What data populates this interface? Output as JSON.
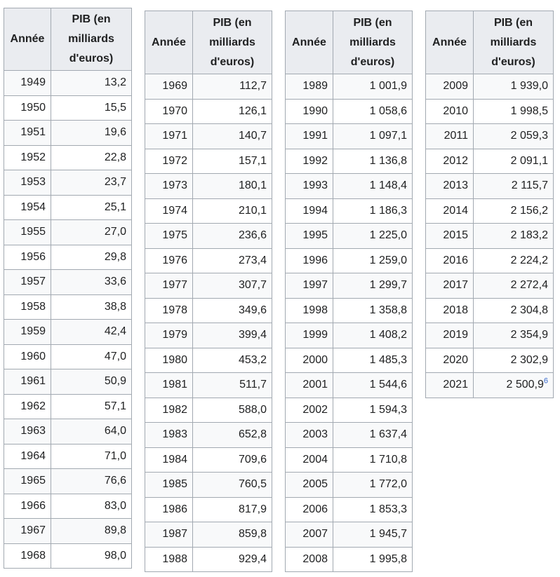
{
  "headers": {
    "year": "Année",
    "gdp": "PIB (en milliards d'euros)"
  },
  "tables": [
    {
      "rows": [
        {
          "year": "1949",
          "gdp": "13,2"
        },
        {
          "year": "1950",
          "gdp": "15,5"
        },
        {
          "year": "1951",
          "gdp": "19,6"
        },
        {
          "year": "1952",
          "gdp": "22,8"
        },
        {
          "year": "1953",
          "gdp": "23,7"
        },
        {
          "year": "1954",
          "gdp": "25,1"
        },
        {
          "year": "1955",
          "gdp": "27,0"
        },
        {
          "year": "1956",
          "gdp": "29,8"
        },
        {
          "year": "1957",
          "gdp": "33,6"
        },
        {
          "year": "1958",
          "gdp": "38,8"
        },
        {
          "year": "1959",
          "gdp": "42,4"
        },
        {
          "year": "1960",
          "gdp": "47,0"
        },
        {
          "year": "1961",
          "gdp": "50,9"
        },
        {
          "year": "1962",
          "gdp": "57,1"
        },
        {
          "year": "1963",
          "gdp": "64,0"
        },
        {
          "year": "1964",
          "gdp": "71,0"
        },
        {
          "year": "1965",
          "gdp": "76,6"
        },
        {
          "year": "1966",
          "gdp": "83,0"
        },
        {
          "year": "1967",
          "gdp": "89,8"
        },
        {
          "year": "1968",
          "gdp": "98,0"
        }
      ]
    },
    {
      "rows": [
        {
          "year": "1969",
          "gdp": "112,7"
        },
        {
          "year": "1970",
          "gdp": "126,1"
        },
        {
          "year": "1971",
          "gdp": "140,7"
        },
        {
          "year": "1972",
          "gdp": "157,1"
        },
        {
          "year": "1973",
          "gdp": "180,1"
        },
        {
          "year": "1974",
          "gdp": "210,1"
        },
        {
          "year": "1975",
          "gdp": "236,6"
        },
        {
          "year": "1976",
          "gdp": "273,4"
        },
        {
          "year": "1977",
          "gdp": "307,7"
        },
        {
          "year": "1978",
          "gdp": "349,6"
        },
        {
          "year": "1979",
          "gdp": "399,4"
        },
        {
          "year": "1980",
          "gdp": "453,2"
        },
        {
          "year": "1981",
          "gdp": "511,7"
        },
        {
          "year": "1982",
          "gdp": "588,0"
        },
        {
          "year": "1983",
          "gdp": "652,8"
        },
        {
          "year": "1984",
          "gdp": "709,6"
        },
        {
          "year": "1985",
          "gdp": "760,5"
        },
        {
          "year": "1986",
          "gdp": "817,9"
        },
        {
          "year": "1987",
          "gdp": "859,8"
        },
        {
          "year": "1988",
          "gdp": "929,4"
        }
      ]
    },
    {
      "rows": [
        {
          "year": "1989",
          "gdp": "1 001,9"
        },
        {
          "year": "1990",
          "gdp": "1 058,6"
        },
        {
          "year": "1991",
          "gdp": "1 097,1"
        },
        {
          "year": "1992",
          "gdp": "1 136,8"
        },
        {
          "year": "1993",
          "gdp": "1 148,4"
        },
        {
          "year": "1994",
          "gdp": "1 186,3"
        },
        {
          "year": "1995",
          "gdp": "1 225,0"
        },
        {
          "year": "1996",
          "gdp": "1 259,0"
        },
        {
          "year": "1997",
          "gdp": "1 299,7"
        },
        {
          "year": "1998",
          "gdp": "1 358,8"
        },
        {
          "year": "1999",
          "gdp": "1 408,2"
        },
        {
          "year": "2000",
          "gdp": "1 485,3"
        },
        {
          "year": "2001",
          "gdp": "1 544,6"
        },
        {
          "year": "2002",
          "gdp": "1 594,3"
        },
        {
          "year": "2003",
          "gdp": "1 637,4"
        },
        {
          "year": "2004",
          "gdp": "1 710,8"
        },
        {
          "year": "2005",
          "gdp": "1 772,0"
        },
        {
          "year": "2006",
          "gdp": "1 853,3"
        },
        {
          "year": "2007",
          "gdp": "1 945,7"
        },
        {
          "year": "2008",
          "gdp": "1 995,8"
        }
      ]
    },
    {
      "rows": [
        {
          "year": "2009",
          "gdp": "1 939,0"
        },
        {
          "year": "2010",
          "gdp": "1 998,5"
        },
        {
          "year": "2011",
          "gdp": "2 059,3"
        },
        {
          "year": "2012",
          "gdp": "2 091,1"
        },
        {
          "year": "2013",
          "gdp": "2 115,7"
        },
        {
          "year": "2014",
          "gdp": "2 156,2"
        },
        {
          "year": "2015",
          "gdp": "2 183,2"
        },
        {
          "year": "2016",
          "gdp": "2 224,2"
        },
        {
          "year": "2017",
          "gdp": "2 272,4"
        },
        {
          "year": "2018",
          "gdp": "2 304,8"
        },
        {
          "year": "2019",
          "gdp": "2 354,9"
        },
        {
          "year": "2020",
          "gdp": "2 302,9"
        },
        {
          "year": "2021",
          "gdp": "2 500,9",
          "ref": "6"
        }
      ]
    }
  ],
  "colors": {
    "border": "#a2a9b1",
    "header_bg": "#eaecf0",
    "odd_row_bg": "#f8f9fa",
    "even_row_bg": "#ffffff",
    "link": "#3366cc"
  }
}
